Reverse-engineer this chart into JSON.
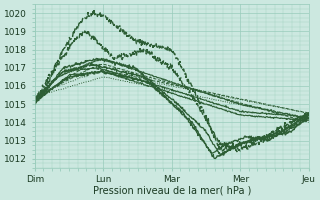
{
  "background_color": "#cce8e0",
  "plot_bg_color": "#cce8e0",
  "grid_color": "#99ccbb",
  "line_color": "#2d5e35",
  "xlabel": "Pression niveau de la mer( hPa )",
  "ylim": [
    1011.5,
    1020.5
  ],
  "xlim": [
    0,
    96
  ],
  "yticks": [
    1012,
    1013,
    1014,
    1015,
    1016,
    1017,
    1018,
    1019,
    1020
  ],
  "xtick_labels": [
    "Dim",
    "Lun",
    "Mar",
    "Mer",
    "Jeu"
  ],
  "xtick_positions": [
    0,
    24,
    48,
    72,
    96
  ]
}
